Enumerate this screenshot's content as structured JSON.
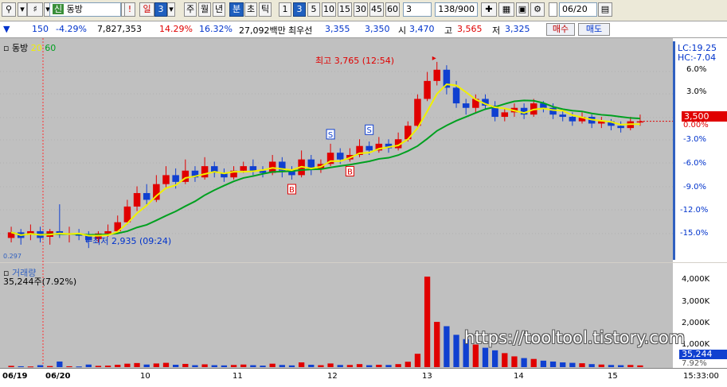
{
  "toolbar": {
    "search_icon": "search-icon",
    "speaker_icon": "speaker-icon",
    "market_badge": "신",
    "stock_name": "동방",
    "exclaim": "!",
    "period_day": "일",
    "period_num": "3",
    "periods": [
      "주",
      "월",
      "년",
      "분",
      "초",
      "틱"
    ],
    "intervals": [
      "1",
      "3",
      "5",
      "10",
      "15",
      "30",
      "45",
      "60"
    ],
    "interval_value": "3",
    "bar_count": "138",
    "bar_total": "/900",
    "date": "06/20"
  },
  "quote": {
    "diff": "150",
    "rate": "-4.29%",
    "volume": "7,827,353",
    "pct1": "14.29%",
    "pct2": "16.32%",
    "amount": "27,092백만",
    "best_label": "최우선",
    "best_ask": "3,355",
    "best_bid": "3,350",
    "open_label": "시",
    "open": "3,470",
    "high_label": "고",
    "high": "3,565",
    "low_label": "저",
    "low": "3,325",
    "buy": "매수",
    "sell": "매도"
  },
  "price_panel": {
    "name": "동방",
    "ma20": "20",
    "ma60": "60",
    "max_note": "최고 3,765 (12:54)",
    "min_note": "←최저 2,935 (09:24)",
    "signal_sell": "S",
    "signal_buy": "B",
    "left_small": "0.297",
    "lc": "LC:19.25",
    "hc": "HC:-7.04",
    "current": "3,500",
    "pct_ticks": [
      "6.0%",
      "3.0%",
      "0.00%",
      "-3.0%",
      "-6.0%",
      "-9.0%",
      "-12.0%",
      "-15.0%"
    ]
  },
  "volume_panel": {
    "name": "거래량",
    "value": "35,244주(7.92%)",
    "ticks": [
      "4,000K",
      "3,000K",
      "2,000K",
      "1,000K"
    ],
    "current": "35,244",
    "current_pct": "7.92%"
  },
  "watermark": "https://tooltool.tistory.com",
  "time_axis": {
    "labels": [
      "06/19",
      "06/20",
      "10",
      "11",
      "12",
      "13",
      "14",
      "15"
    ],
    "clock": "15:33:00"
  },
  "colors": {
    "up": "#e00000",
    "down": "#1040d0",
    "ma20": "#f0f000",
    "ma60": "#00a020",
    "panel": "#c0c0c0"
  },
  "chart_data": {
    "type": "candlestick",
    "price": {
      "ma_periods": [
        20,
        60
      ],
      "high_max": 3765,
      "low_min": 2935,
      "current": 3500,
      "y_axis_percent_range": [
        -16,
        8
      ],
      "cond_blocks": [
        {
          "o": 2980,
          "c": 3005,
          "h": 3030,
          "l": 2960
        },
        {
          "o": 3005,
          "c": 2980,
          "h": 3020,
          "l": 2950
        },
        {
          "o": 3000,
          "c": 3010,
          "h": 3040,
          "l": 2970
        },
        {
          "o": 3010,
          "c": 2980,
          "h": 3030,
          "l": 2960
        },
        {
          "o": 2985,
          "c": 3010,
          "h": 3020,
          "l": 2950
        },
        {
          "o": 3010,
          "c": 3000,
          "h": 3130,
          "l": 2980
        },
        {
          "o": 3000,
          "c": 3000,
          "h": 3030,
          "l": 2960
        },
        {
          "o": 3000,
          "c": 2990,
          "h": 3020,
          "l": 2970
        },
        {
          "o": 2990,
          "c": 2970,
          "h": 3010,
          "l": 2935
        },
        {
          "o": 2975,
          "c": 3000,
          "h": 3010,
          "l": 2960
        },
        {
          "o": 3000,
          "c": 3010,
          "h": 3040,
          "l": 2985
        },
        {
          "o": 3010,
          "c": 3050,
          "h": 3080,
          "l": 3000
        },
        {
          "o": 3050,
          "c": 3120,
          "h": 3150,
          "l": 3040
        },
        {
          "o": 3120,
          "c": 3180,
          "h": 3210,
          "l": 3100
        },
        {
          "o": 3180,
          "c": 3150,
          "h": 3220,
          "l": 3130
        },
        {
          "o": 3150,
          "c": 3220,
          "h": 3260,
          "l": 3140
        },
        {
          "o": 3220,
          "c": 3260,
          "h": 3300,
          "l": 3200
        },
        {
          "o": 3260,
          "c": 3230,
          "h": 3290,
          "l": 3200
        },
        {
          "o": 3230,
          "c": 3280,
          "h": 3330,
          "l": 3220
        },
        {
          "o": 3280,
          "c": 3250,
          "h": 3300,
          "l": 3230
        },
        {
          "o": 3250,
          "c": 3300,
          "h": 3340,
          "l": 3240
        },
        {
          "o": 3300,
          "c": 3270,
          "h": 3320,
          "l": 3250
        },
        {
          "o": 3270,
          "c": 3250,
          "h": 3290,
          "l": 3230
        },
        {
          "o": 3250,
          "c": 3280,
          "h": 3300,
          "l": 3240
        },
        {
          "o": 3280,
          "c": 3300,
          "h": 3320,
          "l": 3270
        },
        {
          "o": 3300,
          "c": 3280,
          "h": 3330,
          "l": 3260
        },
        {
          "o": 3280,
          "c": 3270,
          "h": 3300,
          "l": 3250
        },
        {
          "o": 3270,
          "c": 3320,
          "h": 3350,
          "l": 3260
        },
        {
          "o": 3320,
          "c": 3280,
          "h": 3340,
          "l": 3250
        },
        {
          "o": 3280,
          "c": 3260,
          "h": 3300,
          "l": 3240
        },
        {
          "o": 3260,
          "c": 3330,
          "h": 3370,
          "l": 3250
        },
        {
          "o": 3330,
          "c": 3290,
          "h": 3350,
          "l": 3260
        },
        {
          "o": 3290,
          "c": 3310,
          "h": 3330,
          "l": 3270
        },
        {
          "o": 3310,
          "c": 3360,
          "h": 3400,
          "l": 3300
        },
        {
          "o": 3360,
          "c": 3330,
          "h": 3380,
          "l": 3310
        },
        {
          "o": 3330,
          "c": 3350,
          "h": 3380,
          "l": 3320
        },
        {
          "o": 3350,
          "c": 3390,
          "h": 3420,
          "l": 3340
        },
        {
          "o": 3390,
          "c": 3370,
          "h": 3410,
          "l": 3350
        },
        {
          "o": 3370,
          "c": 3400,
          "h": 3430,
          "l": 3360
        },
        {
          "o": 3400,
          "c": 3380,
          "h": 3420,
          "l": 3360
        },
        {
          "o": 3380,
          "c": 3420,
          "h": 3450,
          "l": 3370
        },
        {
          "o": 3420,
          "c": 3480,
          "h": 3500,
          "l": 3410
        },
        {
          "o": 3480,
          "c": 3600,
          "h": 3620,
          "l": 3470
        },
        {
          "o": 3600,
          "c": 3680,
          "h": 3720,
          "l": 3590
        },
        {
          "o": 3680,
          "c": 3730,
          "h": 3765,
          "l": 3660
        },
        {
          "o": 3730,
          "c": 3650,
          "h": 3750,
          "l": 3620
        },
        {
          "o": 3650,
          "c": 3580,
          "h": 3680,
          "l": 3560
        },
        {
          "o": 3580,
          "c": 3560,
          "h": 3600,
          "l": 3530
        },
        {
          "o": 3560,
          "c": 3600,
          "h": 3620,
          "l": 3540
        },
        {
          "o": 3600,
          "c": 3570,
          "h": 3620,
          "l": 3550
        },
        {
          "o": 3570,
          "c": 3520,
          "h": 3590,
          "l": 3500
        },
        {
          "o": 3520,
          "c": 3540,
          "h": 3560,
          "l": 3500
        },
        {
          "o": 3540,
          "c": 3560,
          "h": 3580,
          "l": 3520
        },
        {
          "o": 3560,
          "c": 3530,
          "h": 3580,
          "l": 3510
        },
        {
          "o": 3530,
          "c": 3580,
          "h": 3600,
          "l": 3520
        },
        {
          "o": 3580,
          "c": 3560,
          "h": 3590,
          "l": 3540
        },
        {
          "o": 3560,
          "c": 3530,
          "h": 3580,
          "l": 3510
        },
        {
          "o": 3530,
          "c": 3520,
          "h": 3550,
          "l": 3500
        },
        {
          "o": 3520,
          "c": 3500,
          "h": 3540,
          "l": 3480
        },
        {
          "o": 3500,
          "c": 3520,
          "h": 3540,
          "l": 3490
        },
        {
          "o": 3520,
          "c": 3490,
          "h": 3530,
          "l": 3470
        },
        {
          "o": 3490,
          "c": 3500,
          "h": 3520,
          "l": 3470
        },
        {
          "o": 3500,
          "c": 3480,
          "h": 3510,
          "l": 3460
        },
        {
          "o": 3480,
          "c": 3470,
          "h": 3500,
          "l": 3450
        },
        {
          "o": 3470,
          "c": 3500,
          "h": 3520,
          "l": 3460
        },
        {
          "o": 3500,
          "c": 3500,
          "h": 3530,
          "l": 3480
        }
      ]
    },
    "volume_K": [
      60,
      40,
      30,
      90,
      50,
      260,
      40,
      30,
      120,
      60,
      70,
      110,
      160,
      190,
      120,
      170,
      200,
      110,
      150,
      90,
      130,
      90,
      80,
      100,
      120,
      90,
      70,
      160,
      100,
      80,
      220,
      110,
      90,
      170,
      100,
      100,
      140,
      90,
      110,
      100,
      140,
      250,
      620,
      4200,
      2100,
      1900,
      1500,
      1300,
      1050,
      900,
      780,
      650,
      500,
      420,
      380,
      300,
      260,
      220,
      200,
      180,
      140,
      120,
      100,
      90,
      100,
      80
    ],
    "volume_axis_K": [
      0,
      4500
    ]
  }
}
